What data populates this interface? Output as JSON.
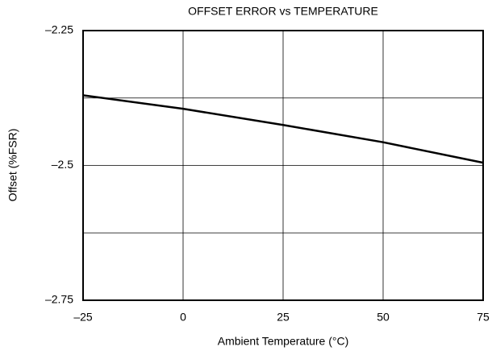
{
  "chart_data": {
    "type": "line",
    "title": "OFFSET ERROR vs TEMPERATURE",
    "x_label": "Ambient Temperature (°C)",
    "y_label": "Offset (%FSR)",
    "x": [
      -25,
      0,
      25,
      50,
      75
    ],
    "series": [
      {
        "name": "Offset",
        "color": "#000000",
        "values": [
          -2.37,
          -2.395,
          -2.425,
          -2.457,
          -2.495
        ]
      }
    ],
    "xlim": [
      -25,
      75
    ],
    "xticks": [
      {
        "value": -25,
        "label": "–25"
      },
      0,
      25,
      50,
      75
    ],
    "ylim": [
      -2.75,
      -2.25
    ],
    "yticks": [
      {
        "value": -2.75,
        "label": "–2.75"
      },
      {
        "value": -2.5,
        "label": "–2.5"
      },
      {
        "value": -2.25,
        "label": "–2.25"
      }
    ],
    "minor_yticks": [
      -2.625,
      -2.375
    ],
    "grid": true
  }
}
